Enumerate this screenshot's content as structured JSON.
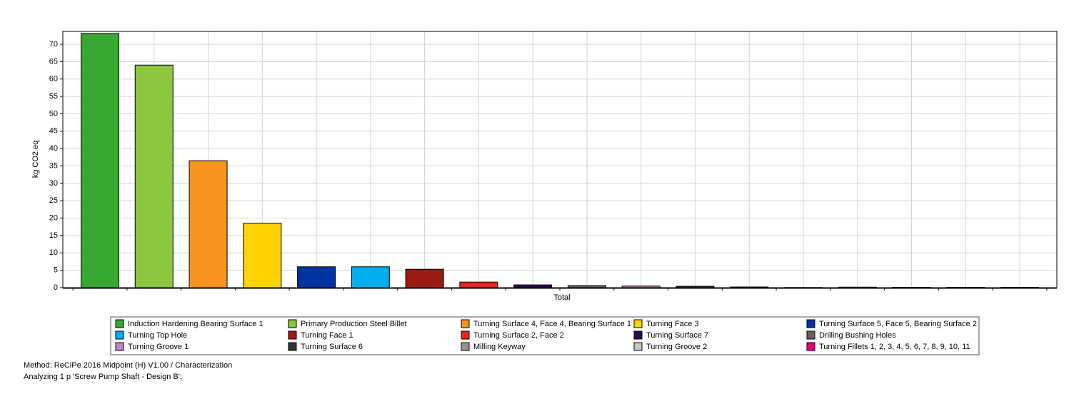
{
  "chart_data": {
    "type": "bar",
    "y_label": "kg CO2 eq",
    "x_label": "Total",
    "categories": [
      "Induction Hardening Bearing Surface 1",
      "Primary Production Steel Billet",
      "Turning Surface 4, Face 4, Bearing Surface 1",
      "Turning Face 3",
      "Turning Surface 5, Face 5, Bearing Surface 2",
      "Turning Top Hole",
      "Turning Face 1",
      "Turning Surface 2, Face 2",
      "Turning Surface 7",
      "Drilling Bushing Holes",
      "Turning Groove 1",
      "Turning Surface 6",
      "Milling Keyway",
      "Turning Groove 2",
      "Turning Fillets 1, 2, 3, 4, 5, 6, 7, 8, 9, 10, 11",
      null,
      null,
      null
    ],
    "values": [
      73.1,
      64.0,
      36.5,
      18.5,
      6.0,
      6.0,
      5.3,
      1.6,
      0.8,
      0.6,
      0.45,
      0.4,
      0.2,
      0.05,
      0.15,
      0.1,
      0.08,
      0.1
    ],
    "colors": [
      "#38a832",
      "#8dc63f",
      "#f7931e",
      "#ffd200",
      "#0033a0",
      "#00aeef",
      "#9b1b12",
      "#e8281c",
      "#2e0a4f",
      "#6b5e62",
      "#c084c0",
      "#333333",
      "#a0928f",
      "#c8c8c8",
      "#e5007e",
      "#00a99d",
      "#e0a0d0",
      "#00a651"
    ],
    "ylim": [
      0,
      73.7
    ],
    "yticks": [
      0,
      5,
      10,
      15,
      20,
      25,
      30,
      35,
      40,
      45,
      50,
      55,
      60,
      65,
      70
    ],
    "grid": true
  },
  "footer": {
    "method": "Method: ReCiPe 2016 Midpoint (H) V1.00 / Characterization",
    "analyzing": "Analyzing 1 p 'Screw Pump Shaft - Design B';"
  }
}
